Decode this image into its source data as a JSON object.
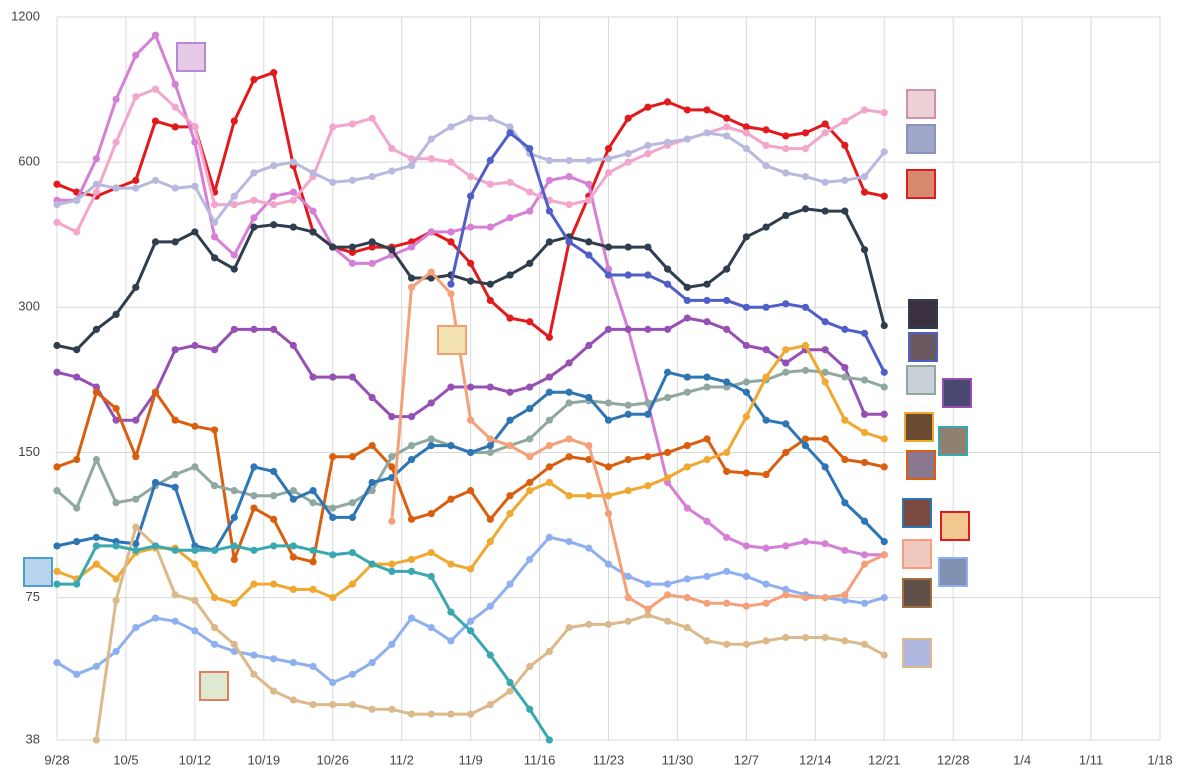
{
  "chart_data": {
    "type": "line",
    "log_scale": true,
    "log_base": 2,
    "grid": true,
    "x": [
      "9/28",
      "9/30",
      "10/2",
      "10/4",
      "10/6",
      "10/8",
      "10/10",
      "10/12",
      "10/14",
      "10/16",
      "10/18",
      "10/20",
      "10/22",
      "10/24",
      "10/26",
      "10/28",
      "10/30",
      "11/1",
      "11/3",
      "11/5",
      "11/7",
      "11/9",
      "11/11",
      "11/13",
      "11/15",
      "11/17",
      "11/19",
      "11/21",
      "11/23",
      "11/25",
      "11/27",
      "11/29",
      "12/1",
      "12/3",
      "12/5",
      "12/7",
      "12/9",
      "12/11",
      "12/13",
      "12/15",
      "12/17",
      "12/19",
      "12/21"
    ],
    "xlim": [
      "9/28",
      "1/18"
    ],
    "xticks": [
      "9/28",
      "10/5",
      "10/12",
      "10/19",
      "10/26",
      "11/2",
      "11/9",
      "11/16",
      "11/23",
      "11/30",
      "12/7",
      "12/14",
      "12/21",
      "12/28",
      "1/4",
      "1/11",
      "1/18"
    ],
    "ylim": [
      38,
      1200
    ],
    "yticks": [
      38,
      75,
      150,
      300,
      600,
      1200
    ],
    "series": [
      {
        "color": "#e31a1c",
        "values": [
          540,
          520,
          510,
          530,
          550,
          730,
          710,
          710,
          520,
          730,
          890,
          920,
          590,
          430,
          400,
          390,
          400,
          400,
          410,
          430,
          410,
          370,
          310,
          285,
          280,
          260,
          410,
          510,
          640,
          740,
          780,
          800,
          770,
          770,
          740,
          710,
          700,
          680,
          690,
          720,
          650,
          520,
          510
        ]
      },
      {
        "color": "#d67fd6",
        "values": [
          500,
          500,
          610,
          810,
          1000,
          1100,
          870,
          660,
          420,
          385,
          460,
          510,
          520,
          475,
          400,
          370,
          370,
          385,
          400,
          430,
          430,
          440,
          440,
          460,
          475,
          550,
          560,
          540,
          360,
          270,
          190,
          130,
          115,
          108,
          100,
          96,
          95,
          96,
          98,
          97,
          94,
          92,
          92
        ]
      },
      {
        "color": "#f2a6cc",
        "values": [
          450,
          430,
          520,
          660,
          820,
          850,
          780,
          710,
          490,
          490,
          500,
          490,
          500,
          560,
          710,
          720,
          740,
          640,
          610,
          610,
          600,
          560,
          540,
          545,
          520,
          500,
          490,
          500,
          570,
          600,
          625,
          650,
          670,
          690,
          710,
          690,
          650,
          640,
          640,
          690,
          730,
          770,
          760
        ]
      },
      {
        "color": "#b9b9e0",
        "values": [
          490,
          500,
          540,
          530,
          530,
          550,
          530,
          535,
          450,
          510,
          570,
          590,
          600,
          570,
          545,
          550,
          560,
          575,
          590,
          670,
          710,
          740,
          740,
          710,
          625,
          605,
          605,
          605,
          610,
          625,
          650,
          660,
          670,
          690,
          680,
          640,
          590,
          570,
          560,
          545,
          550,
          560,
          630
        ]
      },
      {
        "color": "#2f3e4e",
        "values": [
          250,
          245,
          270,
          290,
          330,
          410,
          410,
          430,
          380,
          360,
          440,
          445,
          440,
          430,
          400,
          400,
          410,
          395,
          345,
          345,
          350,
          340,
          335,
          350,
          370,
          410,
          420,
          410,
          400,
          400,
          400,
          360,
          330,
          335,
          360,
          420,
          440,
          465,
          480,
          475,
          475,
          395,
          275
        ]
      },
      {
        "color": "#4f5fc8",
        "values": [
          null,
          null,
          null,
          null,
          null,
          null,
          null,
          null,
          null,
          null,
          null,
          null,
          null,
          null,
          null,
          null,
          null,
          null,
          null,
          null,
          335,
          510,
          605,
          690,
          640,
          475,
          410,
          385,
          350,
          350,
          350,
          335,
          310,
          310,
          310,
          300,
          300,
          305,
          300,
          280,
          270,
          265,
          220
        ]
      },
      {
        "color": "#9650b4",
        "values": [
          220,
          215,
          205,
          175,
          175,
          200,
          245,
          250,
          245,
          270,
          270,
          270,
          250,
          215,
          215,
          215,
          195,
          178,
          178,
          190,
          205,
          205,
          205,
          200,
          205,
          215,
          230,
          250,
          270,
          270,
          270,
          270,
          285,
          280,
          270,
          250,
          245,
          230,
          245,
          245,
          225,
          180,
          180
        ]
      },
      {
        "color": "#d95f0e",
        "values": [
          140,
          145,
          200,
          185,
          147,
          200,
          175,
          170,
          167,
          90,
          115,
          109,
          91,
          89,
          147,
          147,
          155,
          140,
          109,
          112,
          120,
          125,
          109,
          122,
          130,
          140,
          147,
          145,
          140,
          145,
          147,
          150,
          155,
          160,
          137,
          136,
          135,
          150,
          160,
          160,
          145,
          143,
          140
        ]
      },
      {
        "color": "#8fa8a0",
        "values": [
          125,
          115,
          145,
          118,
          120,
          128,
          135,
          140,
          128,
          125,
          122,
          122,
          125,
          118,
          115,
          118,
          125,
          147,
          155,
          160,
          155,
          150,
          150,
          155,
          160,
          175,
          190,
          192,
          190,
          188,
          190,
          195,
          200,
          205,
          205,
          210,
          212,
          220,
          222,
          220,
          215,
          212,
          205
        ]
      },
      {
        "color": "#2e75b6",
        "values": [
          96,
          98,
          100,
          98,
          97,
          130,
          127,
          96,
          94,
          110,
          140,
          137,
          120,
          125,
          110,
          110,
          130,
          133,
          145,
          155,
          155,
          150,
          155,
          175,
          185,
          200,
          200,
          195,
          175,
          180,
          180,
          220,
          215,
          215,
          210,
          200,
          175,
          172,
          155,
          140,
          118,
          108,
          98
        ]
      },
      {
        "color": "#f0a830",
        "values": [
          85,
          82,
          88,
          82,
          93,
          95,
          95,
          88,
          75,
          73,
          80,
          80,
          78,
          78,
          75,
          80,
          88,
          88,
          90,
          93,
          88,
          86,
          98,
          112,
          125,
          130,
          122,
          122,
          122,
          125,
          128,
          133,
          140,
          145,
          150,
          178,
          215,
          245,
          250,
          210,
          175,
          165,
          160
        ]
      },
      {
        "color": "#8fb0f0",
        "values": [
          55,
          52,
          54,
          58,
          65,
          68,
          67,
          64,
          60,
          58,
          57,
          56,
          55,
          54,
          50,
          52,
          55,
          60,
          68,
          65,
          61,
          67,
          72,
          80,
          90,
          100,
          98,
          95,
          88,
          83,
          80,
          80,
          82,
          83,
          85,
          83,
          80,
          78,
          76,
          75,
          74,
          73,
          75
        ]
      },
      {
        "color": "#dcb98a",
        "values": [
          null,
          null,
          38,
          74,
          105,
          96,
          76,
          74,
          65,
          60,
          52,
          48,
          46,
          45,
          45,
          45,
          44,
          44,
          43,
          43,
          43,
          43,
          45,
          48,
          54,
          58,
          65,
          66,
          66,
          67,
          69,
          67,
          65,
          61,
          60,
          60,
          61,
          62,
          62,
          62,
          61,
          60,
          57
        ]
      },
      {
        "color": "#f4a07a",
        "values": [
          null,
          null,
          null,
          null,
          null,
          null,
          null,
          null,
          null,
          null,
          null,
          null,
          null,
          null,
          null,
          null,
          null,
          108,
          330,
          355,
          320,
          175,
          160,
          155,
          147,
          155,
          160,
          155,
          112,
          75,
          71,
          76,
          75,
          73,
          73,
          72,
          73,
          76,
          75,
          75,
          76,
          88,
          92
        ]
      },
      {
        "color": "#3aa8b0",
        "values": [
          80,
          80,
          96,
          96,
          94,
          96,
          94,
          94,
          94,
          96,
          94,
          96,
          96,
          94,
          92,
          93,
          88,
          85,
          85,
          83,
          70,
          64,
          57,
          50,
          44,
          38,
          null,
          null,
          null,
          null,
          null,
          null,
          null,
          null,
          null,
          null,
          null,
          null,
          null,
          null,
          null,
          null,
          null
        ]
      }
    ]
  }
}
